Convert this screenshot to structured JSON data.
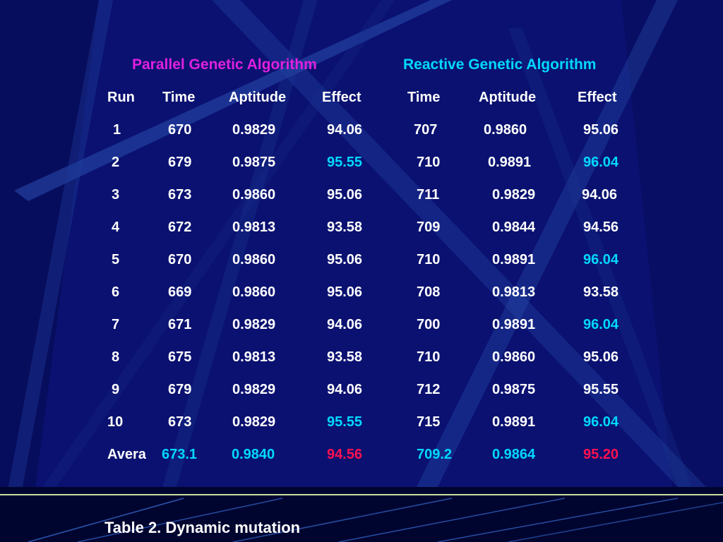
{
  "colors": {
    "background": "#0a1170",
    "white": "#ffffff",
    "magenta_title": "#e020e0",
    "cyan_highlight": "#00d8ff",
    "red_highlight": "#ff1050",
    "divider": "#c8e0a0"
  },
  "table": {
    "group_titles": {
      "parallel": "Parallel Genetic Algorithm",
      "reactive": "Reactive Genetic Algorithm"
    },
    "columns": [
      "Run",
      "Time",
      "Aptitude",
      "Effect",
      "Time",
      "Aptitude",
      "Effect"
    ],
    "rows": [
      {
        "run": "1",
        "p_time": "670",
        "p_apt": "0.9829",
        "p_eff": "94.06",
        "r_time": "707",
        "r_apt": "0.9860",
        "r_eff": "95.06"
      },
      {
        "run": "2",
        "p_time": "679",
        "p_apt": "0.9875",
        "p_eff": "95.55",
        "r_time": "710",
        "r_apt": "0.9891",
        "r_eff": "96.04"
      },
      {
        "run": "3",
        "p_time": "673",
        "p_apt": "0.9860",
        "p_eff": "95.06",
        "r_time": "711",
        "r_apt": "0.9829",
        "r_eff": "94.06"
      },
      {
        "run": "4",
        "p_time": "672",
        "p_apt": "0.9813",
        "p_eff": "93.58",
        "r_time": "709",
        "r_apt": "0.9844",
        "r_eff": "94.56"
      },
      {
        "run": "5",
        "p_time": "670",
        "p_apt": "0.9860",
        "p_eff": "95.06",
        "r_time": "710",
        "r_apt": "0.9891",
        "r_eff": "96.04"
      },
      {
        "run": "6",
        "p_time": "669",
        "p_apt": "0.9860",
        "p_eff": "95.06",
        "r_time": "708",
        "r_apt": "0.9813",
        "r_eff": "93.58"
      },
      {
        "run": "7",
        "p_time": "671",
        "p_apt": "0.9829",
        "p_eff": "94.06",
        "r_time": "700",
        "r_apt": "0.9891",
        "r_eff": "96.04"
      },
      {
        "run": "8",
        "p_time": "675",
        "p_apt": "0.9813",
        "p_eff": "93.58",
        "r_time": "710",
        "r_apt": "0.9860",
        "r_eff": "95.06"
      },
      {
        "run": "9",
        "p_time": "679",
        "p_apt": "0.9829",
        "p_eff": "94.06",
        "r_time": "712",
        "r_apt": "0.9875",
        "r_eff": "95.55"
      },
      {
        "run": "10",
        "p_time": "673",
        "p_apt": "0.9829",
        "p_eff": "95.55",
        "r_time": "715",
        "r_apt": "0.9891",
        "r_eff": "96.04"
      }
    ],
    "average": {
      "label": "Avera",
      "p_time": "673.1",
      "p_apt": "0.9840",
      "p_eff": "94.56",
      "r_time": "709.2",
      "r_apt": "0.9864",
      "r_eff": "95.20"
    }
  },
  "caption": "Table 2. Dynamic mutation"
}
